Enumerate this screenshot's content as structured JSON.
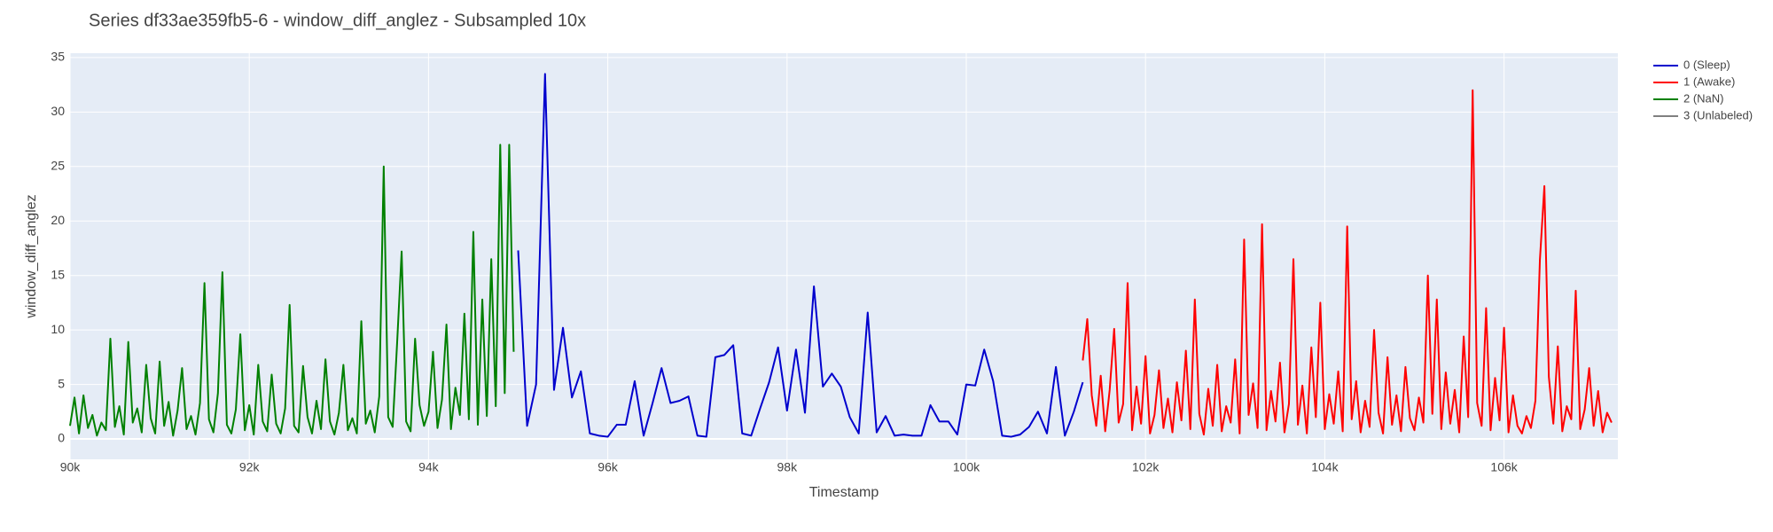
{
  "chart_data": {
    "type": "line",
    "title": "Series df33ae359fb5-6 - window_diff_anglez - Subsampled 10x",
    "x_label": "Timestamp",
    "y_label": "window_diff_anglez",
    "xlim": [
      90000,
      107270
    ],
    "ylim": [
      -1.87,
      35.4
    ],
    "xticks": [
      {
        "value": 90000,
        "label": "90k"
      },
      {
        "value": 92000,
        "label": "92k"
      },
      {
        "value": 94000,
        "label": "94k"
      },
      {
        "value": 96000,
        "label": "96k"
      },
      {
        "value": 98000,
        "label": "98k"
      },
      {
        "value": 100000,
        "label": "100k"
      },
      {
        "value": 102000,
        "label": "102k"
      },
      {
        "value": 104000,
        "label": "104k"
      },
      {
        "value": 106000,
        "label": "106k"
      }
    ],
    "yticks": [
      0,
      5,
      10,
      15,
      20,
      25,
      30,
      35
    ],
    "grid": true,
    "legend": "right",
    "series": [
      {
        "name": "0 (Sleep)",
        "color": "#0000cd",
        "x": [
          95000,
          95100,
          95200,
          95300,
          95400,
          95500,
          95600,
          95700,
          95800,
          95900,
          96000,
          96100,
          96200,
          96300,
          96400,
          96500,
          96600,
          96700,
          96800,
          96900,
          97000,
          97100,
          97200,
          97300,
          97400,
          97500,
          97600,
          97700,
          97800,
          97900,
          98000,
          98100,
          98200,
          98300,
          98400,
          98500,
          98600,
          98700,
          98800,
          98900,
          99000,
          99100,
          99200,
          99300,
          99400,
          99500,
          99600,
          99700,
          99800,
          99900,
          100000,
          100100,
          100200,
          100300,
          100400,
          100500,
          100600,
          100700,
          100800,
          100900,
          101000,
          101100,
          101200,
          101300
        ],
        "values": [
          17.3,
          1.2,
          5,
          33.5,
          4.5,
          10.2,
          3.8,
          6.2,
          0.5,
          0.3,
          0.2,
          1.3,
          1.3,
          5.3,
          0.3,
          3.3,
          6.5,
          3.3,
          3.5,
          3.9,
          0.3,
          0.2,
          7.5,
          7.7,
          8.6,
          0.5,
          0.3,
          2.8,
          5.2,
          8.4,
          2.6,
          8.2,
          2.4,
          14,
          4.8,
          6,
          4.8,
          2,
          0.5,
          11.6,
          0.6,
          2.1,
          0.3,
          0.4,
          0.3,
          0.3,
          3.1,
          1.6,
          1.6,
          0.4,
          5,
          4.9,
          8.2,
          5.3,
          0.3,
          0.2,
          0.4,
          1.1,
          2.5,
          0.5,
          6.6,
          0.3,
          2.5,
          5.2
        ]
      },
      {
        "name": "1 (Awake)",
        "color": "#ff0000",
        "x": [
          101300,
          101350,
          101400,
          101450,
          101500,
          101550,
          101600,
          101650,
          101700,
          101750,
          101800,
          101850,
          101900,
          101950,
          102000,
          102050,
          102100,
          102150,
          102200,
          102250,
          102300,
          102350,
          102400,
          102450,
          102500,
          102550,
          102600,
          102650,
          102700,
          102750,
          102800,
          102850,
          102900,
          102950,
          103000,
          103050,
          103100,
          103150,
          103200,
          103250,
          103300,
          103350,
          103400,
          103450,
          103500,
          103550,
          103600,
          103650,
          103700,
          103750,
          103800,
          103850,
          103900,
          103950,
          104000,
          104050,
          104100,
          104150,
          104200,
          104250,
          104300,
          104350,
          104400,
          104450,
          104500,
          104550,
          104600,
          104650,
          104700,
          104750,
          104800,
          104850,
          104900,
          104950,
          105000,
          105050,
          105100,
          105150,
          105200,
          105250,
          105300,
          105350,
          105400,
          105450,
          105500,
          105550,
          105600,
          105650,
          105700,
          105750,
          105800,
          105850,
          105900,
          105950,
          106000,
          106050,
          106100,
          106150,
          106200,
          106250,
          106300,
          106350,
          106400,
          106450,
          106500,
          106550,
          106600,
          106650,
          106700,
          106750,
          106800,
          106850,
          106900,
          106950,
          107000,
          107050,
          107100,
          107150,
          107200
        ],
        "values": [
          7.2,
          11,
          4,
          1.2,
          5.8,
          0.7,
          4.5,
          10.1,
          1.5,
          3.2,
          14.3,
          0.8,
          4.8,
          1.4,
          7.6,
          0.5,
          2.2,
          6.3,
          1,
          3.7,
          0.6,
          5.2,
          1.7,
          8.1,
          0.9,
          12.8,
          2.3,
          0.4,
          4.6,
          1.2,
          6.8,
          0.7,
          3,
          1.5,
          7.3,
          0.5,
          18.3,
          2.2,
          5.1,
          1,
          19.7,
          0.8,
          4.4,
          1.6,
          7,
          0.6,
          3.2,
          16.5,
          1.3,
          4.9,
          0.5,
          8.4,
          2,
          12.5,
          0.9,
          4.1,
          1.4,
          6.2,
          0.7,
          19.5,
          1.8,
          5.3,
          0.6,
          3.5,
          1.1,
          10,
          2.4,
          0.5,
          7.5,
          1.3,
          4,
          0.7,
          6.6,
          1.9,
          0.8,
          3.8,
          1.5,
          15,
          2.3,
          12.8,
          0.9,
          6.1,
          1.4,
          4.5,
          0.6,
          9.4,
          2,
          32,
          3.3,
          1.2,
          12,
          0.8,
          5.6,
          1.7,
          10.2,
          0.6,
          4,
          1.2,
          0.5,
          2.1,
          1,
          3.5,
          16.4,
          23.2,
          5.7,
          1.4,
          8.5,
          0.7,
          3,
          1.8,
          13.6,
          0.9,
          2.7,
          6.5,
          1.2,
          4.4,
          0.6,
          2.4,
          1.5
        ]
      },
      {
        "name": "2 (NaN)",
        "color": "#008000",
        "x": [
          90000,
          90050,
          90100,
          90150,
          90200,
          90250,
          90300,
          90350,
          90400,
          90450,
          90500,
          90550,
          90600,
          90650,
          90700,
          90750,
          90800,
          90850,
          90900,
          90950,
          91000,
          91050,
          91100,
          91150,
          91200,
          91250,
          91300,
          91350,
          91400,
          91450,
          91500,
          91550,
          91600,
          91650,
          91700,
          91750,
          91800,
          91850,
          91900,
          91950,
          92000,
          92050,
          92100,
          92150,
          92200,
          92250,
          92300,
          92350,
          92400,
          92450,
          92500,
          92550,
          92600,
          92650,
          92700,
          92750,
          92800,
          92850,
          92900,
          92950,
          93000,
          93050,
          93100,
          93150,
          93200,
          93250,
          93300,
          93350,
          93400,
          93450,
          93500,
          93550,
          93600,
          93650,
          93700,
          93750,
          93800,
          93850,
          93900,
          93950,
          94000,
          94050,
          94100,
          94150,
          94200,
          94250,
          94300,
          94350,
          94400,
          94450,
          94500,
          94550,
          94600,
          94650,
          94700,
          94750,
          94800,
          94850,
          94900,
          94950
        ],
        "values": [
          1.2,
          3.8,
          0.5,
          4,
          1,
          2.2,
          0.3,
          1.5,
          0.8,
          9.2,
          1.1,
          3,
          0.4,
          8.9,
          1.5,
          2.8,
          0.6,
          6.8,
          1.9,
          0.5,
          7.1,
          1.2,
          3.4,
          0.3,
          2.6,
          6.5,
          0.9,
          2.1,
          0.4,
          3.3,
          14.3,
          1.8,
          0.6,
          4.2,
          15.3,
          1.3,
          0.5,
          2.7,
          9.6,
          0.8,
          3.1,
          0.4,
          6.8,
          1.6,
          0.7,
          5.9,
          1.4,
          0.5,
          2.8,
          12.3,
          1.2,
          0.6,
          6.7,
          2,
          0.5,
          3.5,
          0.9,
          7.3,
          1.6,
          0.4,
          2.4,
          6.8,
          0.8,
          1.9,
          0.5,
          10.8,
          1.4,
          2.6,
          0.6,
          3.9,
          25,
          2,
          1.1,
          8.9,
          17.2,
          1.6,
          0.7,
          9.2,
          3.1,
          1.2,
          2.5,
          8,
          1,
          3.6,
          10.5,
          0.9,
          4.7,
          2.2,
          11.5,
          1.8,
          19,
          1.3,
          12.8,
          2.1,
          16.5,
          3,
          27,
          4.2,
          27,
          8
        ]
      },
      {
        "name": "3 (Unlabeled)",
        "color": "#808080",
        "x": [],
        "values": []
      }
    ]
  }
}
